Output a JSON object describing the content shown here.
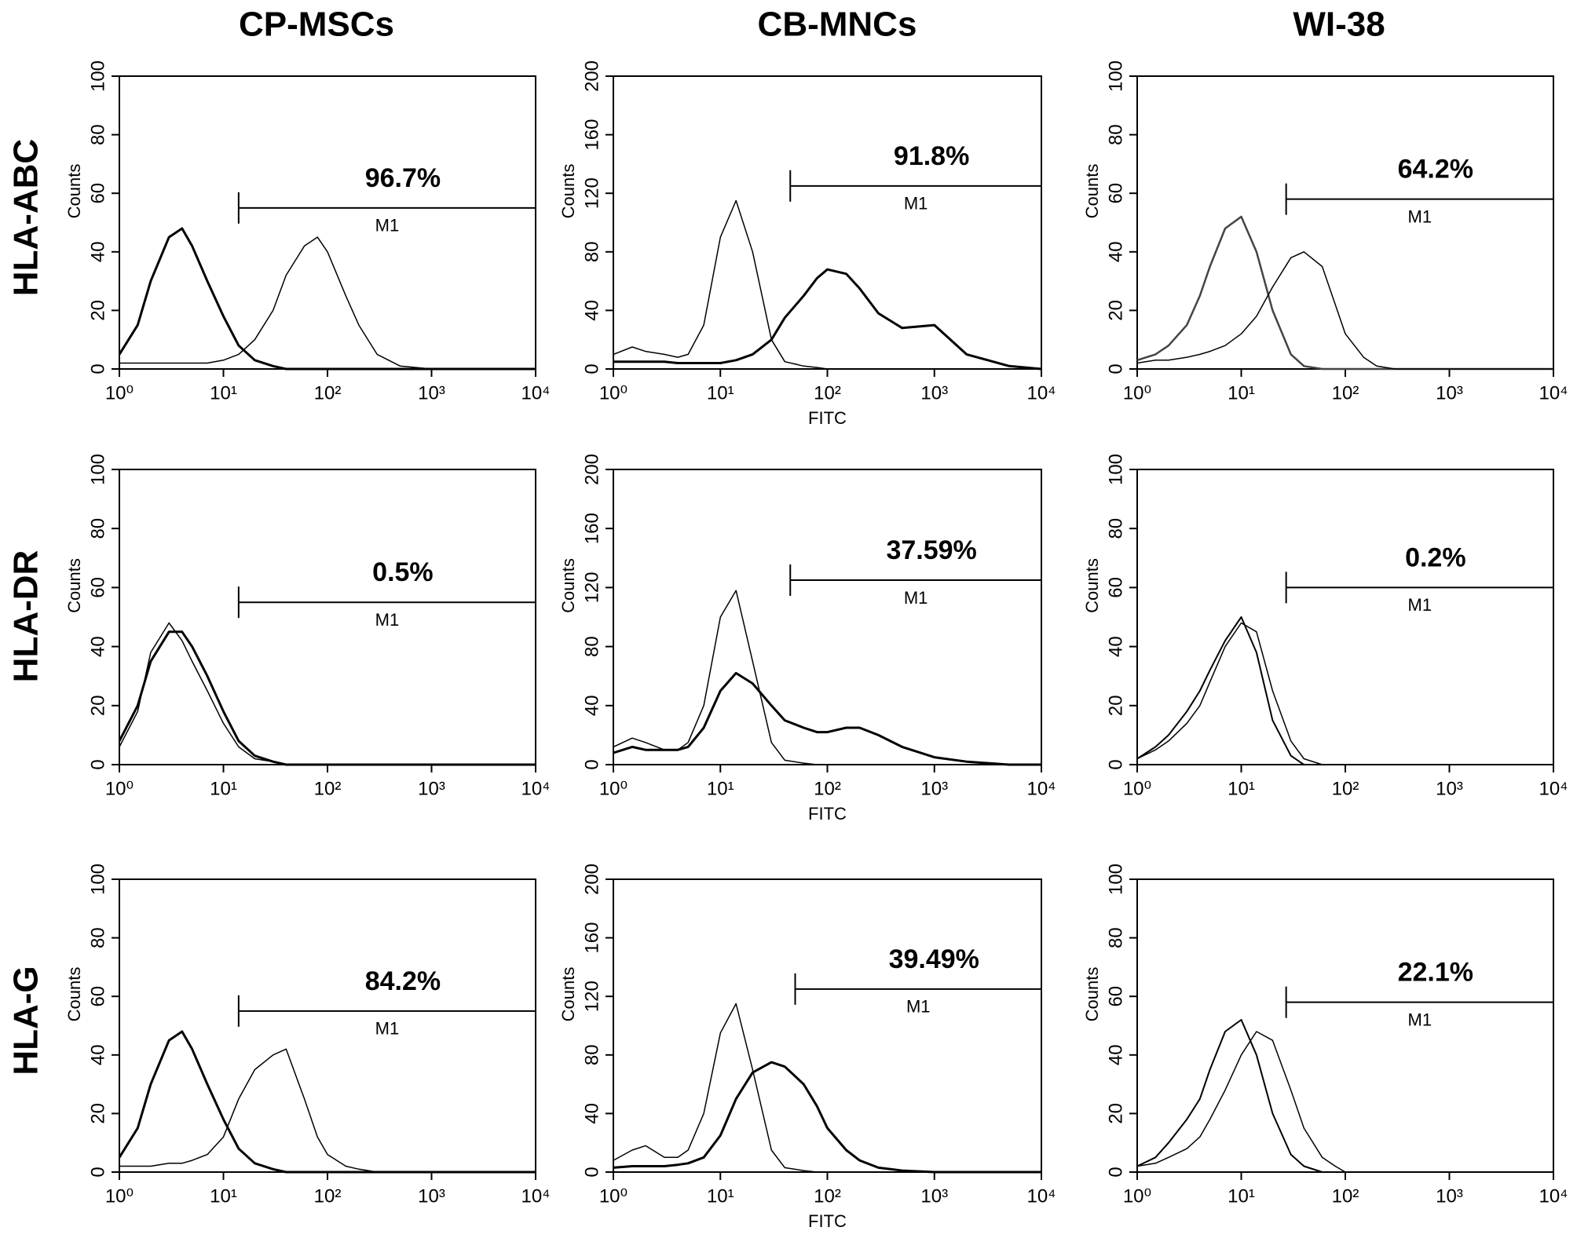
{
  "columns": [
    "CP-MSCs",
    "CB-MNCs",
    "WI-38"
  ],
  "rows": [
    "HLA-ABC",
    "HLA-DR",
    "HLA-G"
  ],
  "chart_data": [
    {
      "type": "line",
      "ylabel": "Counts",
      "xlog": true,
      "xlim": [
        1,
        10000
      ],
      "ylim": [
        0,
        100
      ],
      "yticks": [
        0,
        20,
        40,
        60,
        80,
        100
      ],
      "xticks": [
        {
          "value": 1,
          "label": "10⁰"
        },
        {
          "value": 10,
          "label": "10¹"
        },
        {
          "value": 100,
          "label": "10²"
        },
        {
          "value": 1000,
          "label": "10³"
        },
        {
          "value": 10000,
          "label": "10⁴"
        }
      ],
      "x": [
        1,
        1.5,
        2,
        3,
        4,
        5,
        7,
        10,
        14,
        20,
        30,
        40,
        60,
        80,
        100,
        150,
        200,
        300,
        500,
        1000,
        2000,
        5000,
        10000
      ],
      "series": [
        {
          "color": "#000000",
          "line_width": 3,
          "values": [
            5,
            15,
            30,
            45,
            48,
            42,
            30,
            18,
            8,
            3,
            1,
            0,
            0,
            0,
            0,
            0,
            0,
            0,
            0,
            0,
            0,
            0,
            0
          ]
        },
        {
          "color": "#000000",
          "line_width": 1.5,
          "values": [
            2,
            2,
            2,
            2,
            2,
            2,
            2,
            3,
            5,
            10,
            20,
            32,
            42,
            45,
            40,
            25,
            15,
            5,
            1,
            0,
            0,
            0,
            0
          ]
        }
      ],
      "gate": {
        "name": "M1",
        "label": "96.7%",
        "x": [
          14,
          10000
        ],
        "y": 55
      }
    },
    {
      "type": "line",
      "ylabel": "Counts",
      "xlabel": "FITC",
      "xlog": true,
      "xlim": [
        1,
        10000
      ],
      "ylim": [
        0,
        200
      ],
      "yticks": [
        0,
        40,
        80,
        120,
        160,
        200
      ],
      "xticks": [
        {
          "value": 1,
          "label": "10⁰"
        },
        {
          "value": 10,
          "label": "10¹"
        },
        {
          "value": 100,
          "label": "10²"
        },
        {
          "value": 1000,
          "label": "10³"
        },
        {
          "value": 10000,
          "label": "10⁴"
        }
      ],
      "x": [
        1,
        1.5,
        2,
        3,
        4,
        5,
        7,
        10,
        14,
        20,
        30,
        40,
        60,
        80,
        100,
        150,
        200,
        300,
        500,
        1000,
        2000,
        5000,
        10000
      ],
      "series": [
        {
          "color": "#000000",
          "line_width": 1.5,
          "values": [
            10,
            15,
            12,
            10,
            8,
            10,
            30,
            90,
            115,
            80,
            20,
            5,
            2,
            1,
            0,
            0,
            0,
            0,
            0,
            0,
            0,
            0,
            0
          ]
        },
        {
          "color": "#000000",
          "line_width": 3,
          "values": [
            5,
            5,
            5,
            5,
            4,
            4,
            4,
            4,
            6,
            10,
            20,
            35,
            50,
            62,
            68,
            65,
            55,
            38,
            28,
            30,
            10,
            2,
            0
          ]
        }
      ],
      "gate": {
        "name": "M1",
        "label": "91.8%",
        "x": [
          45,
          10000
        ],
        "y": 125
      }
    },
    {
      "type": "line",
      "ylabel": "Counts",
      "xlog": true,
      "xlim": [
        1,
        10000
      ],
      "ylim": [
        0,
        100
      ],
      "yticks": [
        0,
        20,
        40,
        60,
        80,
        100
      ],
      "xticks": [
        {
          "value": 1,
          "label": "10⁰"
        },
        {
          "value": 10,
          "label": "10¹"
        },
        {
          "value": 100,
          "label": "10²"
        },
        {
          "value": 1000,
          "label": "10³"
        },
        {
          "value": 10000,
          "label": "10⁴"
        }
      ],
      "x": [
        1,
        1.5,
        2,
        3,
        4,
        5,
        7,
        10,
        14,
        20,
        30,
        40,
        60,
        80,
        100,
        150,
        200,
        300,
        500,
        1000,
        2000,
        5000,
        10000
      ],
      "series": [
        {
          "color": "#444444",
          "line_width": 2.5,
          "values": [
            3,
            5,
            8,
            15,
            25,
            35,
            48,
            52,
            40,
            20,
            5,
            1,
            0,
            0,
            0,
            0,
            0,
            0,
            0,
            0,
            0,
            0,
            0
          ]
        },
        {
          "color": "#000000",
          "line_width": 1.5,
          "values": [
            2,
            3,
            3,
            4,
            5,
            6,
            8,
            12,
            18,
            28,
            38,
            40,
            35,
            22,
            12,
            4,
            1,
            0,
            0,
            0,
            0,
            0,
            0
          ]
        }
      ],
      "gate": {
        "name": "M1",
        "label": "64.2%",
        "x": [
          27,
          10000
        ],
        "y": 58
      }
    },
    {
      "type": "line",
      "ylabel": "Counts",
      "xlog": true,
      "xlim": [
        1,
        10000
      ],
      "ylim": [
        0,
        100
      ],
      "yticks": [
        0,
        20,
        40,
        60,
        80,
        100
      ],
      "xticks": [
        {
          "value": 1,
          "label": "10⁰"
        },
        {
          "value": 10,
          "label": "10¹"
        },
        {
          "value": 100,
          "label": "10²"
        },
        {
          "value": 1000,
          "label": "10³"
        },
        {
          "value": 10000,
          "label": "10⁴"
        }
      ],
      "x": [
        1,
        1.5,
        2,
        3,
        4,
        5,
        7,
        10,
        14,
        20,
        30,
        40,
        60,
        80,
        100,
        150,
        200,
        300,
        500,
        1000,
        2000,
        5000,
        10000
      ],
      "series": [
        {
          "color": "#000000",
          "line_width": 3,
          "values": [
            8,
            20,
            35,
            45,
            45,
            40,
            30,
            18,
            8,
            3,
            1,
            0,
            0,
            0,
            0,
            0,
            0,
            0,
            0,
            0,
            0,
            0,
            0
          ]
        },
        {
          "color": "#000000",
          "line_width": 1.5,
          "values": [
            6,
            18,
            38,
            48,
            42,
            35,
            25,
            14,
            6,
            2,
            1,
            0,
            0,
            0,
            0,
            0,
            0,
            0,
            0,
            0,
            0,
            0,
            0
          ]
        }
      ],
      "gate": {
        "name": "M1",
        "label": "0.5%",
        "x": [
          14,
          10000
        ],
        "y": 55
      }
    },
    {
      "type": "line",
      "ylabel": "Counts",
      "xlabel": "FITC",
      "xlog": true,
      "xlim": [
        1,
        10000
      ],
      "ylim": [
        0,
        200
      ],
      "yticks": [
        0,
        40,
        80,
        120,
        160,
        200
      ],
      "xticks": [
        {
          "value": 1,
          "label": "10⁰"
        },
        {
          "value": 10,
          "label": "10¹"
        },
        {
          "value": 100,
          "label": "10²"
        },
        {
          "value": 1000,
          "label": "10³"
        },
        {
          "value": 10000,
          "label": "10⁴"
        }
      ],
      "x": [
        1,
        1.5,
        2,
        3,
        4,
        5,
        7,
        10,
        14,
        20,
        30,
        40,
        60,
        80,
        100,
        150,
        200,
        300,
        500,
        1000,
        2000,
        5000,
        10000
      ],
      "series": [
        {
          "color": "#000000",
          "line_width": 1.5,
          "values": [
            12,
            18,
            15,
            10,
            10,
            15,
            40,
            100,
            118,
            70,
            15,
            3,
            1,
            0,
            0,
            0,
            0,
            0,
            0,
            0,
            0,
            0,
            0
          ]
        },
        {
          "color": "#000000",
          "line_width": 3,
          "values": [
            8,
            12,
            10,
            10,
            10,
            12,
            25,
            50,
            62,
            55,
            40,
            30,
            25,
            22,
            22,
            25,
            25,
            20,
            12,
            5,
            2,
            0,
            0
          ]
        }
      ],
      "gate": {
        "name": "M1",
        "label": "37.59%",
        "x": [
          45,
          10000
        ],
        "y": 125
      }
    },
    {
      "type": "line",
      "ylabel": "Counts",
      "xlog": true,
      "xlim": [
        1,
        10000
      ],
      "ylim": [
        0,
        100
      ],
      "yticks": [
        0,
        20,
        40,
        60,
        80,
        100
      ],
      "xticks": [
        {
          "value": 1,
          "label": "10⁰"
        },
        {
          "value": 10,
          "label": "10¹"
        },
        {
          "value": 100,
          "label": "10²"
        },
        {
          "value": 1000,
          "label": "10³"
        },
        {
          "value": 10000,
          "label": "10⁴"
        }
      ],
      "x": [
        1,
        1.5,
        2,
        3,
        4,
        5,
        7,
        10,
        14,
        20,
        30,
        40,
        60,
        80,
        100,
        150,
        200,
        300,
        500,
        1000,
        2000,
        5000,
        10000
      ],
      "series": [
        {
          "color": "#000000",
          "line_width": 2,
          "values": [
            2,
            6,
            10,
            18,
            25,
            32,
            42,
            50,
            38,
            15,
            3,
            0,
            0,
            0,
            0,
            0,
            0,
            0,
            0,
            0,
            0,
            0,
            0
          ]
        },
        {
          "color": "#000000",
          "line_width": 1.5,
          "values": [
            2,
            5,
            8,
            14,
            20,
            28,
            40,
            48,
            45,
            25,
            8,
            2,
            0,
            0,
            0,
            0,
            0,
            0,
            0,
            0,
            0,
            0,
            0
          ]
        }
      ],
      "gate": {
        "name": "M1",
        "label": "0.2%",
        "x": [
          27,
          10000
        ],
        "y": 60
      }
    },
    {
      "type": "line",
      "ylabel": "Counts",
      "xlog": true,
      "xlim": [
        1,
        10000
      ],
      "ylim": [
        0,
        100
      ],
      "yticks": [
        0,
        20,
        40,
        60,
        80,
        100
      ],
      "xticks": [
        {
          "value": 1,
          "label": "10⁰"
        },
        {
          "value": 10,
          "label": "10¹"
        },
        {
          "value": 100,
          "label": "10²"
        },
        {
          "value": 1000,
          "label": "10³"
        },
        {
          "value": 10000,
          "label": "10⁴"
        }
      ],
      "x": [
        1,
        1.5,
        2,
        3,
        4,
        5,
        7,
        10,
        14,
        20,
        30,
        40,
        60,
        80,
        100,
        150,
        200,
        300,
        500,
        1000,
        2000,
        5000,
        10000
      ],
      "series": [
        {
          "color": "#000000",
          "line_width": 3,
          "values": [
            5,
            15,
            30,
            45,
            48,
            42,
            30,
            18,
            8,
            3,
            1,
            0,
            0,
            0,
            0,
            0,
            0,
            0,
            0,
            0,
            0,
            0,
            0
          ]
        },
        {
          "color": "#000000",
          "line_width": 1.5,
          "values": [
            2,
            2,
            2,
            3,
            3,
            4,
            6,
            12,
            25,
            35,
            40,
            42,
            25,
            12,
            6,
            2,
            1,
            0,
            0,
            0,
            0,
            0,
            0
          ]
        }
      ],
      "gate": {
        "name": "M1",
        "label": "84.2%",
        "x": [
          14,
          10000
        ],
        "y": 55
      }
    },
    {
      "type": "line",
      "ylabel": "Counts",
      "xlabel": "FITC",
      "xlog": true,
      "xlim": [
        1,
        10000
      ],
      "ylim": [
        0,
        200
      ],
      "yticks": [
        0,
        40,
        80,
        120,
        160,
        200
      ],
      "xticks": [
        {
          "value": 1,
          "label": "10⁰"
        },
        {
          "value": 10,
          "label": "10¹"
        },
        {
          "value": 100,
          "label": "10²"
        },
        {
          "value": 1000,
          "label": "10³"
        },
        {
          "value": 10000,
          "label": "10⁴"
        }
      ],
      "x": [
        1,
        1.5,
        2,
        3,
        4,
        5,
        7,
        10,
        14,
        20,
        30,
        40,
        60,
        80,
        100,
        150,
        200,
        300,
        500,
        1000,
        2000,
        5000,
        10000
      ],
      "series": [
        {
          "color": "#000000",
          "line_width": 1.5,
          "values": [
            8,
            15,
            18,
            10,
            10,
            15,
            40,
            95,
            115,
            70,
            15,
            3,
            1,
            0,
            0,
            0,
            0,
            0,
            0,
            0,
            0,
            0,
            0
          ]
        },
        {
          "color": "#000000",
          "line_width": 3,
          "values": [
            3,
            4,
            4,
            4,
            5,
            6,
            10,
            25,
            50,
            68,
            75,
            72,
            60,
            45,
            30,
            15,
            8,
            3,
            1,
            0,
            0,
            0,
            0
          ]
        }
      ],
      "gate": {
        "name": "M1",
        "label": "39.49%",
        "x": [
          50,
          10000
        ],
        "y": 125
      }
    },
    {
      "type": "line",
      "ylabel": "Counts",
      "xlog": true,
      "xlim": [
        1,
        10000
      ],
      "ylim": [
        0,
        100
      ],
      "yticks": [
        0,
        20,
        40,
        60,
        80,
        100
      ],
      "xticks": [
        {
          "value": 1,
          "label": "10⁰"
        },
        {
          "value": 10,
          "label": "10¹"
        },
        {
          "value": 100,
          "label": "10²"
        },
        {
          "value": 1000,
          "label": "10³"
        },
        {
          "value": 10000,
          "label": "10⁴"
        }
      ],
      "x": [
        1,
        1.5,
        2,
        3,
        4,
        5,
        7,
        10,
        14,
        20,
        30,
        40,
        60,
        80,
        100,
        150,
        200,
        300,
        500,
        1000,
        2000,
        5000,
        10000
      ],
      "series": [
        {
          "color": "#000000",
          "line_width": 2,
          "values": [
            2,
            5,
            10,
            18,
            25,
            35,
            48,
            52,
            40,
            20,
            6,
            2,
            0,
            0,
            0,
            0,
            0,
            0,
            0,
            0,
            0,
            0,
            0
          ]
        },
        {
          "color": "#000000",
          "line_width": 1.5,
          "values": [
            2,
            3,
            5,
            8,
            12,
            18,
            28,
            40,
            48,
            45,
            28,
            15,
            5,
            2,
            0,
            0,
            0,
            0,
            0,
            0,
            0,
            0,
            0
          ]
        }
      ],
      "gate": {
        "name": "M1",
        "label": "22.1%",
        "x": [
          27,
          10000
        ],
        "y": 58
      }
    }
  ]
}
